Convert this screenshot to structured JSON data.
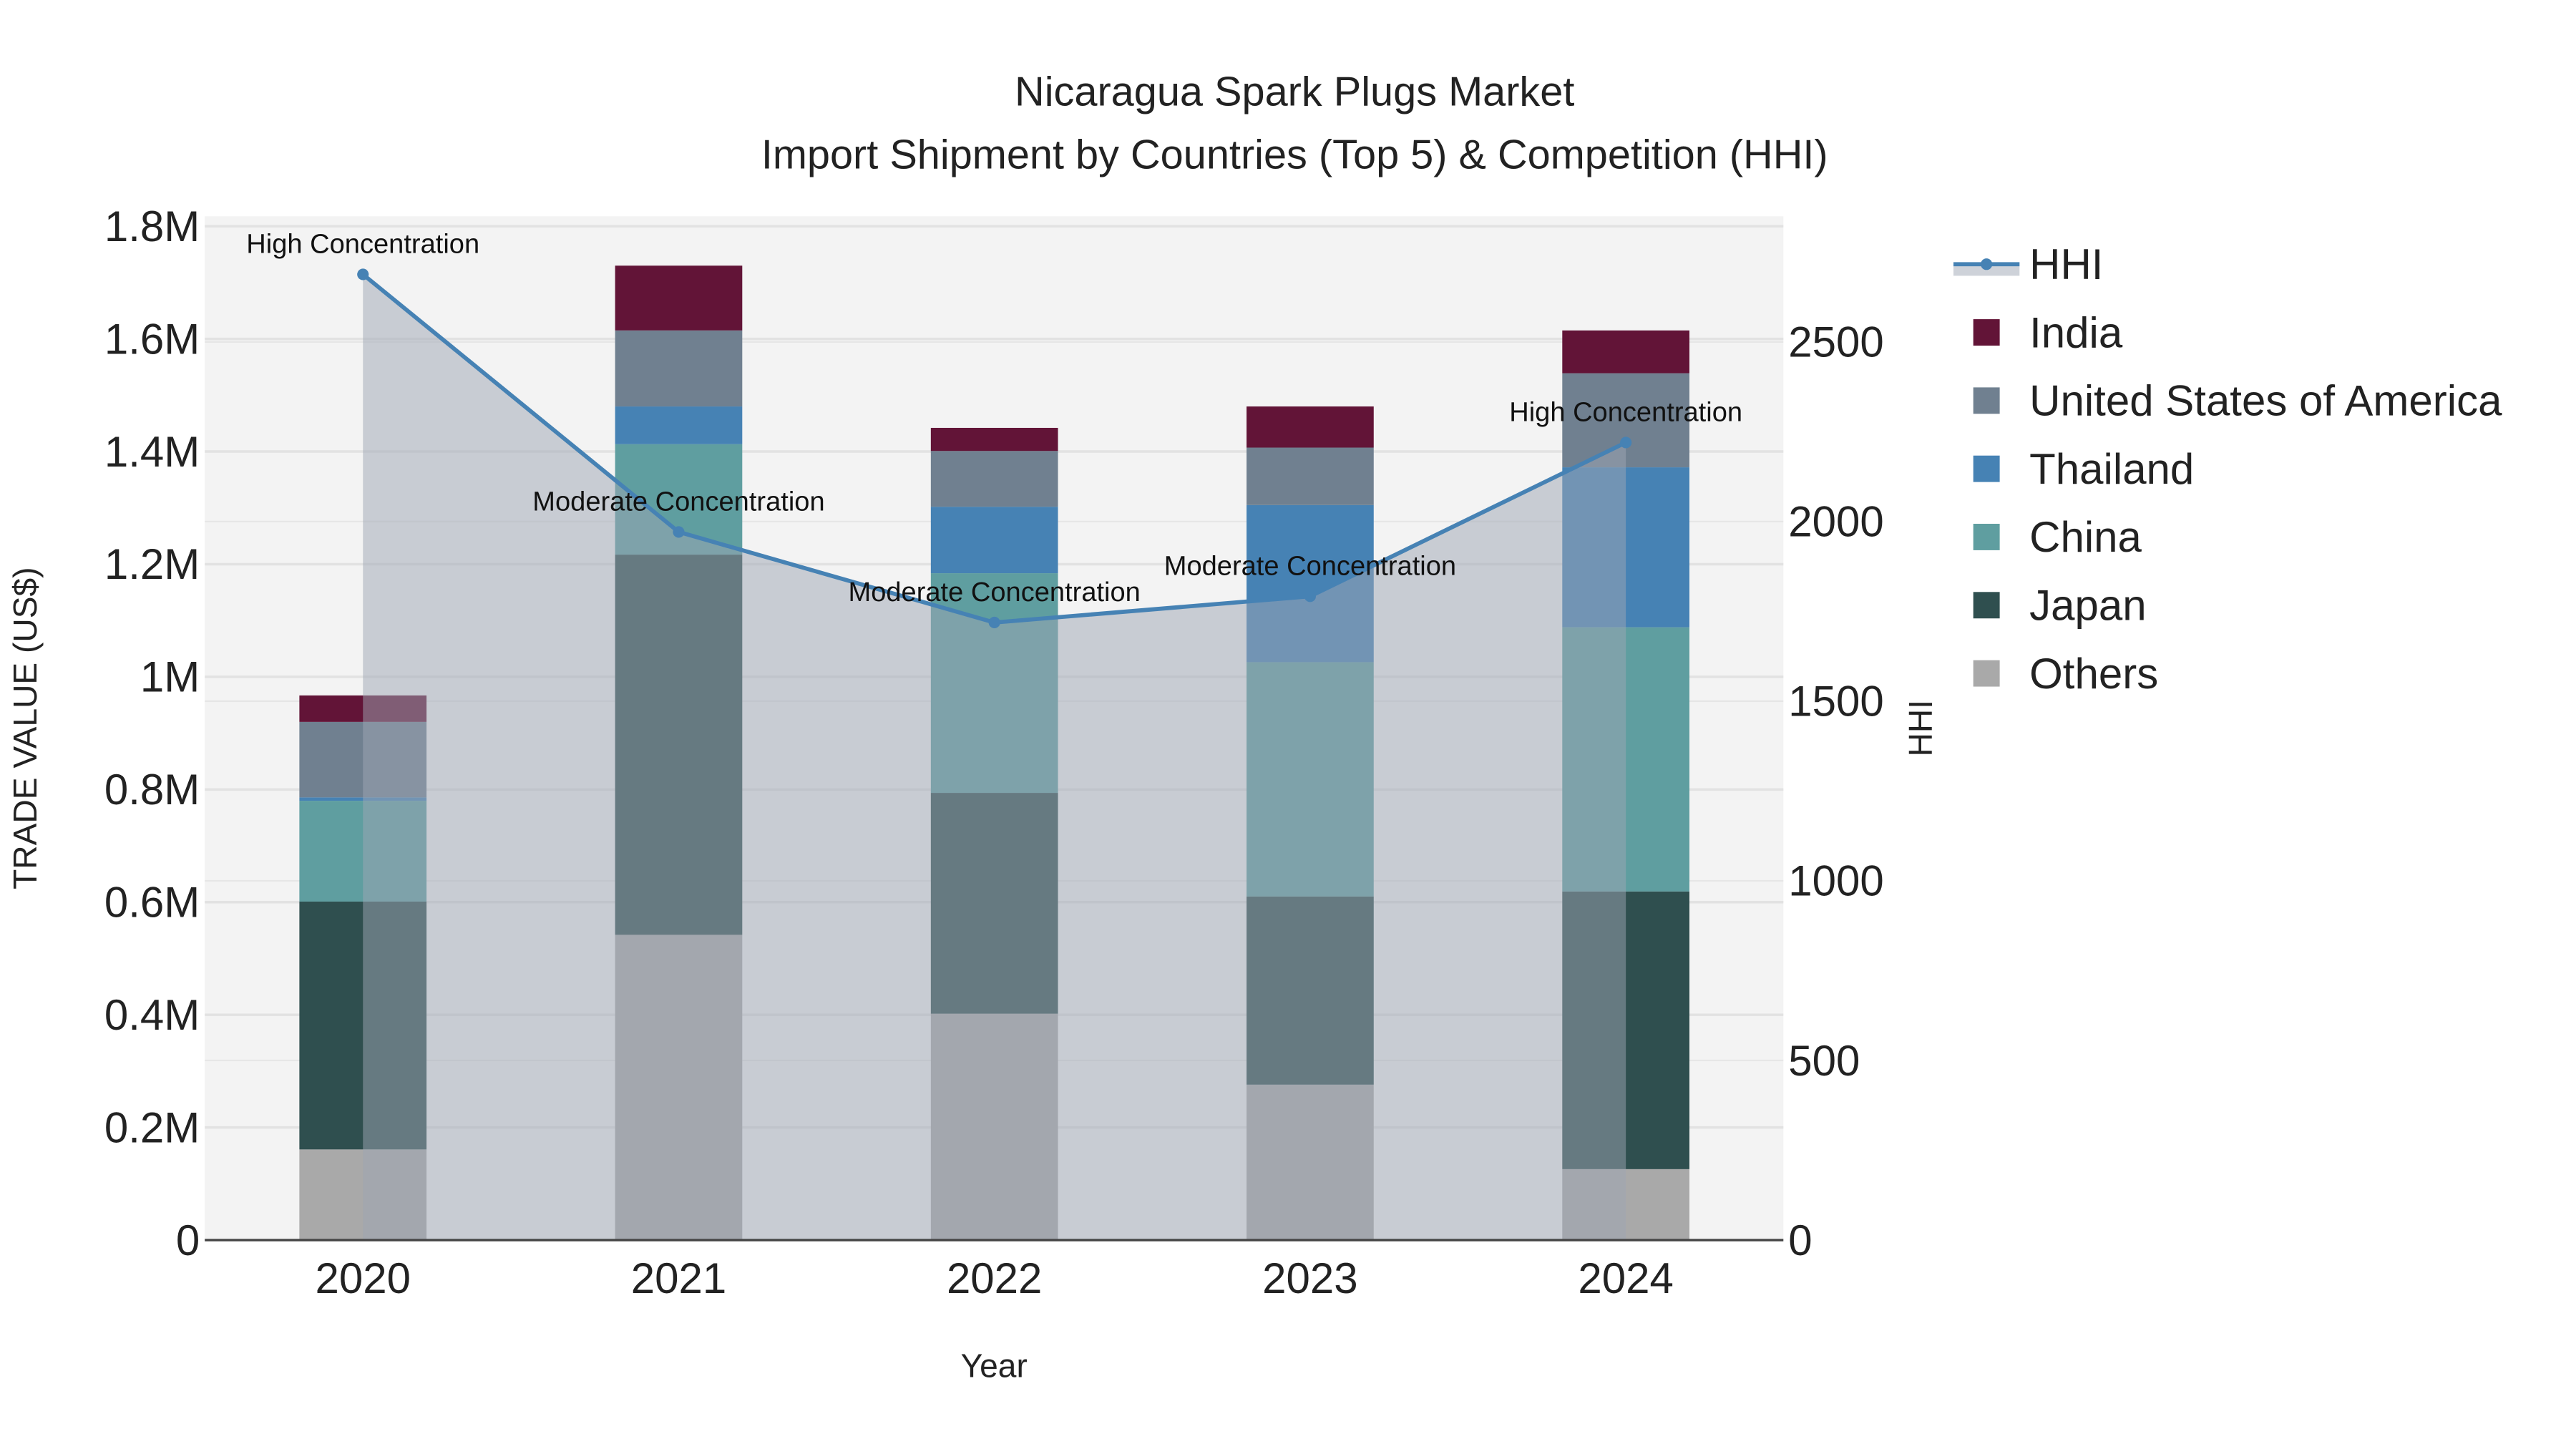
{
  "chart_data": {
    "type": "bar",
    "stacked": true,
    "title": "Nicaragua Spark Plugs Market",
    "subtitle": "Import Shipment by Countries (Top 5) & Competition (HHI)",
    "xlabel": "Year",
    "ylabel": "TRADE VALUE (US$)",
    "y2label": "HHI",
    "categories": [
      "2020",
      "2021",
      "2022",
      "2023",
      "2024"
    ],
    "ylim": [
      0,
      1800000
    ],
    "y2lim": [
      0,
      2822
    ],
    "yticks": [
      {
        "v": 0,
        "label": "0"
      },
      {
        "v": 200000,
        "label": "0.2M"
      },
      {
        "v": 400000,
        "label": "0.4M"
      },
      {
        "v": 600000,
        "label": "0.6M"
      },
      {
        "v": 800000,
        "label": "0.8M"
      },
      {
        "v": 1000000,
        "label": "1M"
      },
      {
        "v": 1200000,
        "label": "1.2M"
      },
      {
        "v": 1400000,
        "label": "1.4M"
      },
      {
        "v": 1600000,
        "label": "1.6M"
      },
      {
        "v": 1800000,
        "label": "1.8M"
      }
    ],
    "y2ticks": [
      {
        "v": 0,
        "label": "0"
      },
      {
        "v": 500,
        "label": "500"
      },
      {
        "v": 1000,
        "label": "1000"
      },
      {
        "v": 1500,
        "label": "1500"
      },
      {
        "v": 2000,
        "label": "2000"
      },
      {
        "v": 2500,
        "label": "2500"
      }
    ],
    "series": [
      {
        "name": "Others",
        "color": "#a9a9a9",
        "values": [
          161000,
          542000,
          402000,
          276000,
          126000
        ]
      },
      {
        "name": "Japan",
        "color": "#2f4f4f",
        "values": [
          440000,
          675000,
          392000,
          334000,
          493000
        ]
      },
      {
        "name": "China",
        "color": "#5f9ea0",
        "values": [
          179000,
          196000,
          390000,
          416000,
          469000
        ]
      },
      {
        "name": "Thailand",
        "color": "#4682b4",
        "values": [
          6000,
          67000,
          118000,
          279000,
          284000
        ]
      },
      {
        "name": "United States of America",
        "color": "#708090",
        "values": [
          134000,
          135000,
          99000,
          102000,
          167000
        ]
      },
      {
        "name": "India",
        "color": "#621437",
        "values": [
          47000,
          115000,
          41000,
          73000,
          76000
        ]
      }
    ],
    "line": {
      "name": "HHI",
      "color": "#4682b4",
      "values": [
        2688,
        1971,
        1719,
        1792,
        2220
      ]
    },
    "annotations": [
      "High Concentration",
      "Moderate Concentration",
      "Moderate Concentration",
      "Moderate Concentration",
      "High Concentration"
    ],
    "legend_order": [
      "HHI",
      "India",
      "United States of America",
      "Thailand",
      "China",
      "Japan",
      "Others"
    ],
    "legend_position": "right",
    "grid": true
  }
}
